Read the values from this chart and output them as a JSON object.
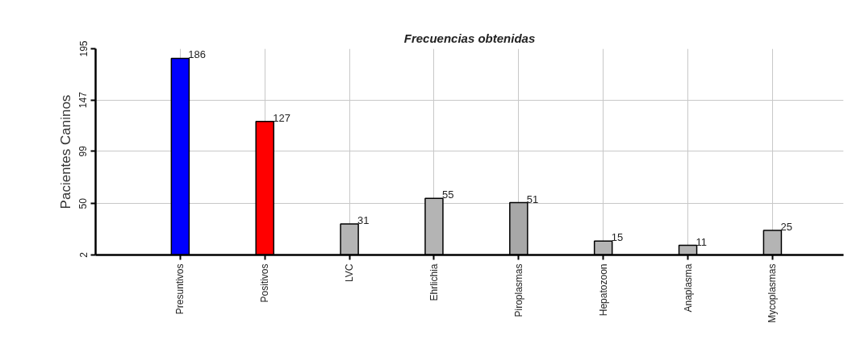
{
  "chart_data": {
    "type": "bar",
    "title": "Frecuencias obtenidas",
    "ylabel": "Pacientes Caninos",
    "categories": [
      "Presuntivos",
      "Positivos",
      "LVC",
      "Ehrlichia",
      "Piroplasmas",
      "Hepatozoon",
      "Anaplasma",
      "Mycoplasmas"
    ],
    "values": [
      186,
      127,
      31,
      55,
      51,
      15,
      11,
      25
    ],
    "colors": [
      "#0000ff",
      "#ff0000",
      "#b4b4b4",
      "#b4b4b4",
      "#a8a8a8",
      "#b4b4b4",
      "#b4b4b4",
      "#b4b4b4"
    ],
    "ylim": [
      2,
      195
    ],
    "yticks": [
      2,
      50,
      99,
      147,
      195
    ],
    "grid": true,
    "data_labels": true
  }
}
